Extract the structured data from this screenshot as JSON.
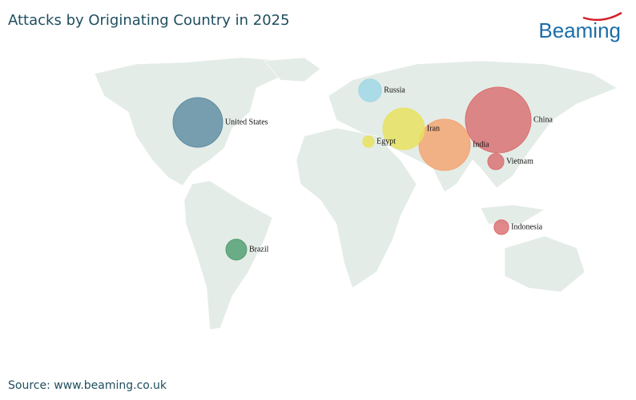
{
  "chart_data": {
    "type": "bubble-map",
    "title": "Attacks by Originating Country in 2025",
    "brand": "Beaming",
    "source": "Source: www.beaming.co.uk",
    "series": [
      {
        "name": "United States",
        "color": "#5f8ca2",
        "value": 57
      },
      {
        "name": "China",
        "color": "#db6e70",
        "value": 100
      },
      {
        "name": "Iran",
        "color": "#e8e25c",
        "value": 40
      },
      {
        "name": "India",
        "color": "#f4a46f",
        "value": 61
      },
      {
        "name": "Russia",
        "color": "#9fd7e7",
        "value": 12
      },
      {
        "name": "Egypt",
        "color": "#e8e25c",
        "value": 3
      },
      {
        "name": "Vietnam",
        "color": "#db6e70",
        "value": 6
      },
      {
        "name": "Indonesia",
        "color": "#db6e70",
        "value": 5
      },
      {
        "name": "Brazil",
        "color": "#4f9e70",
        "value": 10
      }
    ]
  }
}
